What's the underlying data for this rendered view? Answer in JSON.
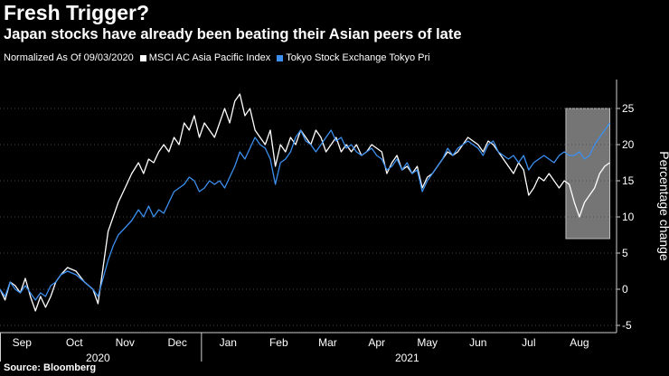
{
  "title": "Fresh Trigger?",
  "subtitle": "Japan stocks have already been beating their Asian peers of late",
  "legend": {
    "note": "Normalized As Of 09/03/2020",
    "items": [
      {
        "label": "MSCI AC Asia Pacific Index",
        "color": "#ffffff"
      },
      {
        "label": "Tokyo Stock Exchange Tokyo Pri",
        "color": "#3b8ff0"
      }
    ]
  },
  "source": "Source: Bloomberg",
  "colors": {
    "background": "#000000",
    "msci": "#ffffff",
    "topix": "#3b8ff0",
    "highlight": "#8a8a8a"
  },
  "chart_data": {
    "type": "line",
    "title": "Fresh Trigger?",
    "ylabel": "Percentage change",
    "xlabel": "",
    "ylim": [
      -6,
      29
    ],
    "yticks": [
      -5,
      0,
      5,
      10,
      15,
      20,
      25
    ],
    "xlim": [
      0,
      365
    ],
    "month_labels": [
      {
        "label": "Sep",
        "x": 13
      },
      {
        "label": "Oct",
        "x": 44
      },
      {
        "label": "Nov",
        "x": 74
      },
      {
        "label": "Dec",
        "x": 105
      },
      {
        "label": "Jan",
        "x": 135
      },
      {
        "label": "Feb",
        "x": 165
      },
      {
        "label": "Mar",
        "x": 194
      },
      {
        "label": "Apr",
        "x": 223
      },
      {
        "label": "May",
        "x": 253
      },
      {
        "label": "Jun",
        "x": 283
      },
      {
        "label": "Jul",
        "x": 313
      },
      {
        "label": "Aug",
        "x": 343
      }
    ],
    "year_labels": [
      {
        "label": "2020",
        "x": 58
      },
      {
        "label": "2021",
        "x": 241
      }
    ],
    "x_dividers": [
      0,
      119
    ],
    "highlight_box": {
      "x0": 335,
      "x1": 361,
      "y0": 7,
      "y1": 25
    },
    "series": [
      {
        "name": "MSCI AC Asia Pacific Index",
        "color": "#ffffff",
        "points": [
          [
            0,
            0
          ],
          [
            3,
            -1.5
          ],
          [
            6,
            1
          ],
          [
            9,
            0.5
          ],
          [
            12,
            -0.5
          ],
          [
            15,
            1.5
          ],
          [
            18,
            -1
          ],
          [
            21,
            -3
          ],
          [
            24,
            -1
          ],
          [
            27,
            -2.5
          ],
          [
            30,
            -1
          ],
          [
            33,
            1
          ],
          [
            36,
            2
          ],
          [
            40,
            3
          ],
          [
            45,
            2.5
          ],
          [
            50,
            1
          ],
          [
            55,
            0
          ],
          [
            58,
            -2
          ],
          [
            61,
            3
          ],
          [
            64,
            8
          ],
          [
            67,
            10
          ],
          [
            70,
            12
          ],
          [
            74,
            14
          ],
          [
            78,
            16
          ],
          [
            82,
            17.5
          ],
          [
            85,
            16
          ],
          [
            88,
            18
          ],
          [
            91,
            17.5
          ],
          [
            94,
            19
          ],
          [
            97,
            20
          ],
          [
            100,
            19
          ],
          [
            103,
            21
          ],
          [
            106,
            20
          ],
          [
            109,
            23
          ],
          [
            112,
            22
          ],
          [
            115,
            24
          ],
          [
            118,
            21
          ],
          [
            121,
            23
          ],
          [
            124,
            22
          ],
          [
            127,
            21
          ],
          [
            130,
            23
          ],
          [
            133,
            25
          ],
          [
            136,
            23
          ],
          [
            139,
            26
          ],
          [
            142,
            27
          ],
          [
            145,
            24
          ],
          [
            148,
            25
          ],
          [
            151,
            22
          ],
          [
            154,
            21
          ],
          [
            157,
            20
          ],
          [
            160,
            22
          ],
          [
            163,
            17
          ],
          [
            166,
            20
          ],
          [
            169,
            19
          ],
          [
            172,
            21
          ],
          [
            175,
            20
          ],
          [
            178,
            22
          ],
          [
            181,
            21
          ],
          [
            184,
            20
          ],
          [
            187,
            22
          ],
          [
            190,
            21
          ],
          [
            193,
            19
          ],
          [
            196,
            20
          ],
          [
            199,
            21
          ],
          [
            202,
            19
          ],
          [
            205,
            20
          ],
          [
            208,
            19
          ],
          [
            211,
            20
          ],
          [
            214,
            18.5
          ],
          [
            217,
            19
          ],
          [
            220,
            20
          ],
          [
            223,
            19.5
          ],
          [
            226,
            19
          ],
          [
            229,
            16
          ],
          [
            232,
            17.5
          ],
          [
            235,
            18.5
          ],
          [
            238,
            16.5
          ],
          [
            241,
            17
          ],
          [
            244,
            16
          ],
          [
            247,
            17
          ],
          [
            250,
            14
          ],
          [
            253,
            15.5
          ],
          [
            256,
            16
          ],
          [
            259,
            17
          ],
          [
            262,
            18
          ],
          [
            265,
            19
          ],
          [
            268,
            18.5
          ],
          [
            271,
            19
          ],
          [
            274,
            20
          ],
          [
            277,
            21
          ],
          [
            280,
            20.5
          ],
          [
            283,
            20
          ],
          [
            286,
            19
          ],
          [
            289,
            20.5
          ],
          [
            292,
            20
          ],
          [
            295,
            19
          ],
          [
            298,
            18
          ],
          [
            301,
            17
          ],
          [
            304,
            16
          ],
          [
            307,
            17.5
          ],
          [
            310,
            16.5
          ],
          [
            313,
            13
          ],
          [
            316,
            14
          ],
          [
            319,
            15.5
          ],
          [
            322,
            15
          ],
          [
            325,
            16
          ],
          [
            328,
            15
          ],
          [
            331,
            14
          ],
          [
            334,
            15
          ],
          [
            337,
            14.5
          ],
          [
            340,
            12
          ],
          [
            343,
            10
          ],
          [
            346,
            12
          ],
          [
            349,
            13
          ],
          [
            352,
            14
          ],
          [
            355,
            16
          ],
          [
            358,
            17
          ],
          [
            361,
            17.5
          ]
        ]
      },
      {
        "name": "Tokyo Stock Exchange Tokyo Pri",
        "color": "#3b8ff0",
        "points": [
          [
            0,
            0
          ],
          [
            3,
            -1
          ],
          [
            6,
            1
          ],
          [
            9,
            0
          ],
          [
            12,
            -0.5
          ],
          [
            15,
            0.5
          ],
          [
            18,
            -0.5
          ],
          [
            21,
            -1.5
          ],
          [
            24,
            -0.5
          ],
          [
            27,
            -1
          ],
          [
            30,
            0.5
          ],
          [
            33,
            1
          ],
          [
            36,
            2
          ],
          [
            40,
            2.5
          ],
          [
            45,
            2
          ],
          [
            50,
            1
          ],
          [
            55,
            0
          ],
          [
            58,
            -1
          ],
          [
            61,
            1.5
          ],
          [
            64,
            4
          ],
          [
            67,
            6
          ],
          [
            70,
            7.5
          ],
          [
            74,
            8.5
          ],
          [
            78,
            9.5
          ],
          [
            82,
            11
          ],
          [
            85,
            10
          ],
          [
            88,
            11.5
          ],
          [
            91,
            10
          ],
          [
            94,
            11
          ],
          [
            97,
            10.5
          ],
          [
            100,
            12
          ],
          [
            103,
            13.5
          ],
          [
            106,
            14
          ],
          [
            109,
            14.5
          ],
          [
            112,
            15.5
          ],
          [
            115,
            15
          ],
          [
            118,
            13.5
          ],
          [
            121,
            14
          ],
          [
            124,
            15
          ],
          [
            127,
            14.5
          ],
          [
            130,
            15
          ],
          [
            133,
            14
          ],
          [
            136,
            15.5
          ],
          [
            139,
            17
          ],
          [
            142,
            19
          ],
          [
            145,
            18
          ],
          [
            148,
            19.5
          ],
          [
            151,
            21
          ],
          [
            154,
            20
          ],
          [
            157,
            19.5
          ],
          [
            160,
            18
          ],
          [
            163,
            14.5
          ],
          [
            166,
            17.5
          ],
          [
            169,
            18
          ],
          [
            172,
            19
          ],
          [
            175,
            21
          ],
          [
            178,
            22
          ],
          [
            181,
            20.5
          ],
          [
            184,
            20
          ],
          [
            187,
            19
          ],
          [
            190,
            20
          ],
          [
            193,
            21
          ],
          [
            196,
            22
          ],
          [
            199,
            20.5
          ],
          [
            202,
            21
          ],
          [
            205,
            19.5
          ],
          [
            208,
            20
          ],
          [
            211,
            19
          ],
          [
            214,
            18.5
          ],
          [
            217,
            19
          ],
          [
            220,
            19.5
          ],
          [
            223,
            18.5
          ],
          [
            226,
            18
          ],
          [
            229,
            16.5
          ],
          [
            232,
            17
          ],
          [
            235,
            18
          ],
          [
            238,
            16.5
          ],
          [
            241,
            17.5
          ],
          [
            244,
            16
          ],
          [
            247,
            16.5
          ],
          [
            250,
            13.5
          ],
          [
            253,
            15
          ],
          [
            256,
            16
          ],
          [
            259,
            17
          ],
          [
            262,
            18
          ],
          [
            265,
            19.5
          ],
          [
            268,
            18.5
          ],
          [
            271,
            19.5
          ],
          [
            274,
            20
          ],
          [
            277,
            20.5
          ],
          [
            280,
            20
          ],
          [
            283,
            19.5
          ],
          [
            286,
            18.5
          ],
          [
            289,
            20
          ],
          [
            292,
            20.5
          ],
          [
            295,
            19
          ],
          [
            298,
            18.5
          ],
          [
            301,
            18
          ],
          [
            304,
            18.5
          ],
          [
            307,
            17.5
          ],
          [
            310,
            18.5
          ],
          [
            313,
            16.5
          ],
          [
            316,
            17.5
          ],
          [
            319,
            18
          ],
          [
            322,
            18.5
          ],
          [
            325,
            18
          ],
          [
            328,
            17.5
          ],
          [
            331,
            18.5
          ],
          [
            334,
            19
          ],
          [
            337,
            18.5
          ],
          [
            340,
            18.5
          ],
          [
            343,
            19
          ],
          [
            346,
            18
          ],
          [
            349,
            18.5
          ],
          [
            352,
            20
          ],
          [
            355,
            21
          ],
          [
            358,
            22
          ],
          [
            361,
            23
          ]
        ]
      }
    ]
  }
}
